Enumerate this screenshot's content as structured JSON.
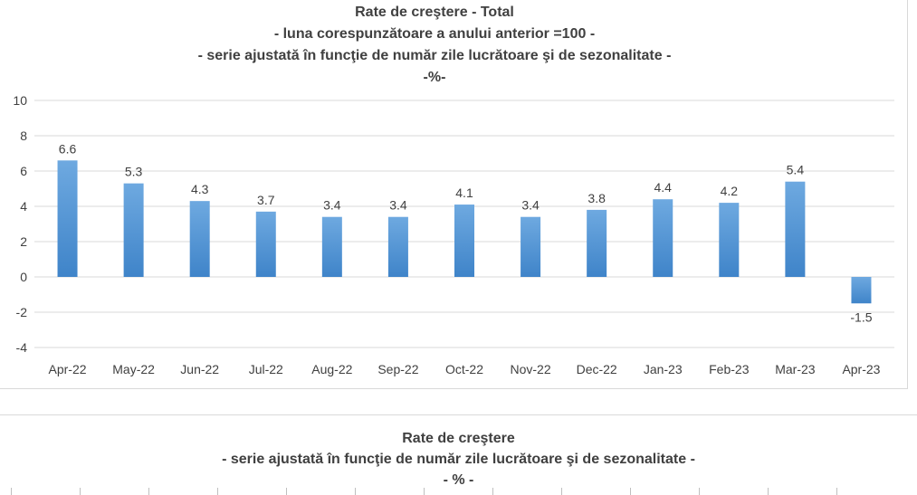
{
  "chart_data": [
    {
      "type": "bar",
      "title": "Rate de creştere - Total",
      "subtitle_lines": [
        "- luna corespunzătoare a anului anterior =100 -",
        "- serie ajustată în funcţie de număr zile lucrătoare şi de sezonalitate -",
        "-%-"
      ],
      "categories": [
        "Apr-22",
        "May-22",
        "Jun-22",
        "Jul-22",
        "Aug-22",
        "Sep-22",
        "Oct-22",
        "Nov-22",
        "Dec-22",
        "Jan-23",
        "Feb-23",
        "Mar-23",
        "Apr-23"
      ],
      "values": [
        6.6,
        5.3,
        4.3,
        3.7,
        3.4,
        3.4,
        4.1,
        3.4,
        3.8,
        4.4,
        4.2,
        5.4,
        -1.5
      ],
      "data_labels": [
        "6.6",
        "5.3",
        "4.3",
        "3.7",
        "3.4",
        "3.4",
        "4.1",
        "3.4",
        "3.8",
        "4.4",
        "4.2",
        "5.4",
        "-1.5"
      ],
      "ylim": [
        -4,
        10
      ],
      "yticks": [
        "10",
        "8",
        "6",
        "4",
        "2",
        "0",
        "-2",
        "-4"
      ],
      "ytick_values": [
        10,
        8,
        6,
        4,
        2,
        0,
        -2,
        -4
      ],
      "grid": true,
      "bar_color": "#5b9bd5",
      "xlabel": "",
      "ylabel": ""
    },
    {
      "type": "bar",
      "title": "Rate de creştere",
      "subtitle_lines": [
        "- serie ajustată în funcţie de număr zile lucrătoare şi de sezonalitate -",
        "- % -"
      ]
    }
  ]
}
